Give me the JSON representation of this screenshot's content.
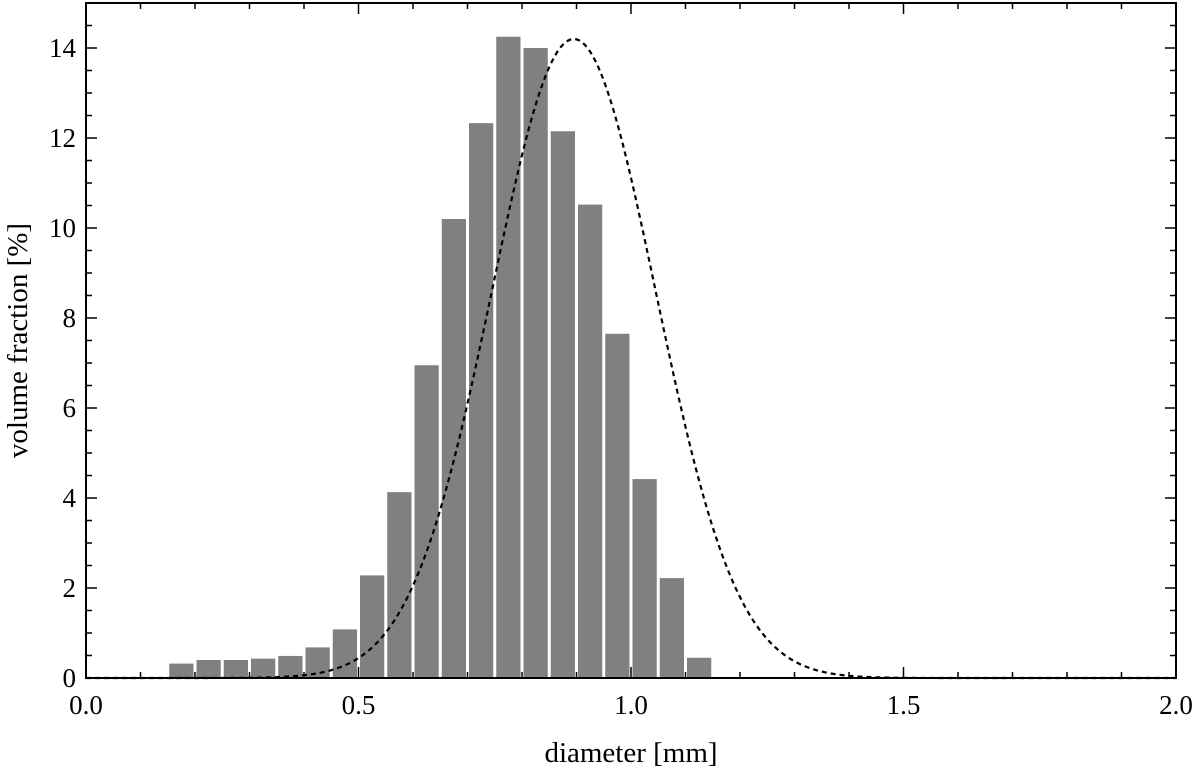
{
  "chart_data": {
    "type": "bar",
    "title": "",
    "xlabel": "diameter [mm]",
    "ylabel": "volume fraction [%]",
    "xlim": [
      0.0,
      2.0
    ],
    "ylim": [
      0,
      15
    ],
    "x_ticks": [
      "0.0",
      "0.5",
      "1.0",
      "1.5",
      "2.0"
    ],
    "y_ticks": [
      "0",
      "2",
      "4",
      "6",
      "8",
      "10",
      "12",
      "14"
    ],
    "grid": false,
    "legend": "none",
    "colors": {
      "bars": "#808080",
      "fit_curve": "#000000"
    },
    "bars": {
      "bin_width": 0.05,
      "x": [
        0.175,
        0.225,
        0.275,
        0.325,
        0.375,
        0.425,
        0.475,
        0.525,
        0.575,
        0.625,
        0.675,
        0.725,
        0.775,
        0.825,
        0.875,
        0.925,
        0.975,
        1.025,
        1.075,
        1.125,
        1.175,
        1.225,
        1.275
      ],
      "values": [
        0.32,
        0.4,
        0.4,
        0.43,
        0.49,
        0.68,
        1.08,
        2.28,
        4.13,
        6.95,
        10.2,
        12.33,
        14.25,
        14.0,
        12.15,
        10.52,
        7.65,
        4.42,
        2.22,
        0.45,
        0.0,
        0.0,
        0.0
      ]
    },
    "fit_curve": {
      "style": "dashed",
      "model": "gaussian",
      "peak": 14.2,
      "mean": 0.895,
      "sigma": 0.15
    }
  }
}
